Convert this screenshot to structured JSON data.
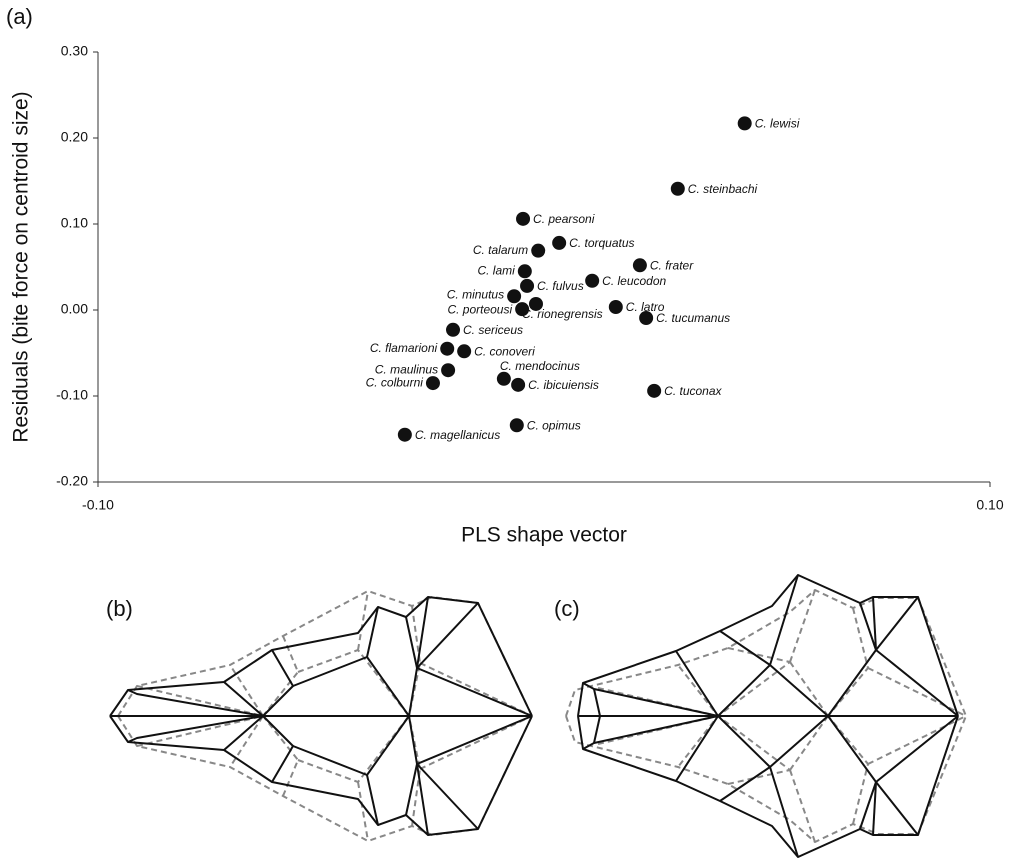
{
  "panel_labels": [
    "(a)",
    "(b)",
    "(c)"
  ],
  "chart_data": {
    "type": "scatter",
    "x_label": "PLS shape vector",
    "y_label": "Residuals (bite force on centroid size)",
    "labels": [
      "C. lewisi",
      "C. steinbachi",
      "C. pearsoni",
      "C. torquatus",
      "C. talarum",
      "C. lami",
      "C. frater",
      "C. leucodon",
      "C. fulvus",
      "C. minutus",
      "C. rionegrensis",
      "C. porteousi",
      "C. latro",
      "C. tucumanus",
      "C. sericeus",
      "C. flamarioni",
      "C. conoveri",
      "C. maulinus",
      "C. colburni",
      "C. mendocinus",
      "C. ibicuiensis",
      "C. tuconax",
      "C. opimus",
      "C. magellanicus"
    ],
    "x": [
      0.045,
      0.03,
      -0.0047,
      0.0034,
      -0.0013,
      -0.0043,
      0.0215,
      0.0108,
      -0.0038,
      -0.0067,
      -0.0018,
      -0.0049,
      0.0161,
      0.0229,
      -0.0204,
      -0.0217,
      -0.0179,
      -0.0215,
      -0.0249,
      -0.009,
      -0.0058,
      0.0247,
      -0.0061,
      -0.0312
    ],
    "y": [
      0.217,
      0.141,
      0.106,
      0.078,
      0.069,
      0.045,
      0.052,
      0.034,
      0.028,
      0.016,
      0.007,
      0.001,
      0.0035,
      -0.0093,
      -0.023,
      -0.045,
      -0.048,
      -0.07,
      -0.085,
      -0.08,
      -0.087,
      -0.094,
      -0.134,
      -0.145
    ],
    "color": "#111111",
    "xlim": [
      -0.1,
      0.1
    ],
    "xticks": [
      {
        "value": -0.1,
        "label": "-0.10"
      },
      {
        "value": 0.1,
        "label": "0.10"
      }
    ],
    "ylim": [
      -0.2,
      0.3
    ],
    "yticks": [
      {
        "value": 0.3,
        "label": "0.30"
      },
      {
        "value": 0.2,
        "label": "0.20"
      },
      {
        "value": 0.1,
        "label": "0.10"
      },
      {
        "value": 0,
        "label": "0.00"
      },
      {
        "value": -0.1,
        "label": "-0.10"
      },
      {
        "value": -0.2,
        "label": "-0.20"
      }
    ]
  }
}
